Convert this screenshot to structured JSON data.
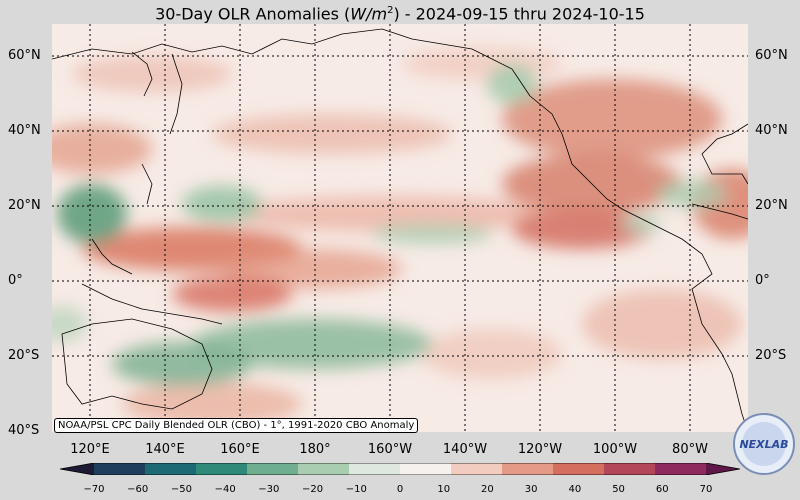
{
  "title_parts": {
    "prefix": "30-Day OLR Anomalies (",
    "unit_base": "W/m",
    "unit_exp": "2",
    "suffix": ") - 2024-09-15 thru 2024-10-15"
  },
  "lat_labels": [
    "60°N",
    "40°N",
    "20°N",
    "0°",
    "20°S",
    "40°S"
  ],
  "lon_labels": [
    "120°E",
    "140°E",
    "160°E",
    "180°",
    "160°W",
    "140°W",
    "120°W",
    "100°W",
    "80°W"
  ],
  "source": "NOAA/PSL CPC Daily Blended OLR (CBO) - 1°, 1991-2020 CBO Anomaly",
  "colorbar_ticks": [
    "−70",
    "−60",
    "−50",
    "−40",
    "−30",
    "−20",
    "−10",
    "0",
    "10",
    "20",
    "30",
    "40",
    "50",
    "60",
    "70"
  ],
  "colorbar_colors": [
    "#1c1a35",
    "#1f3d5c",
    "#1d6a74",
    "#2f8a7a",
    "#6fae8f",
    "#a9cdb0",
    "#dde9de",
    "#f7f1ee",
    "#f2cdbf",
    "#e49a86",
    "#d46e5f",
    "#b4465a",
    "#8e2a5e",
    "#5e1746"
  ],
  "logo_text": "NEXLAB",
  "colors": {
    "positive": "#d9775f",
    "negative": "#5f9f7d",
    "neutral": "#f7ebe6"
  }
}
